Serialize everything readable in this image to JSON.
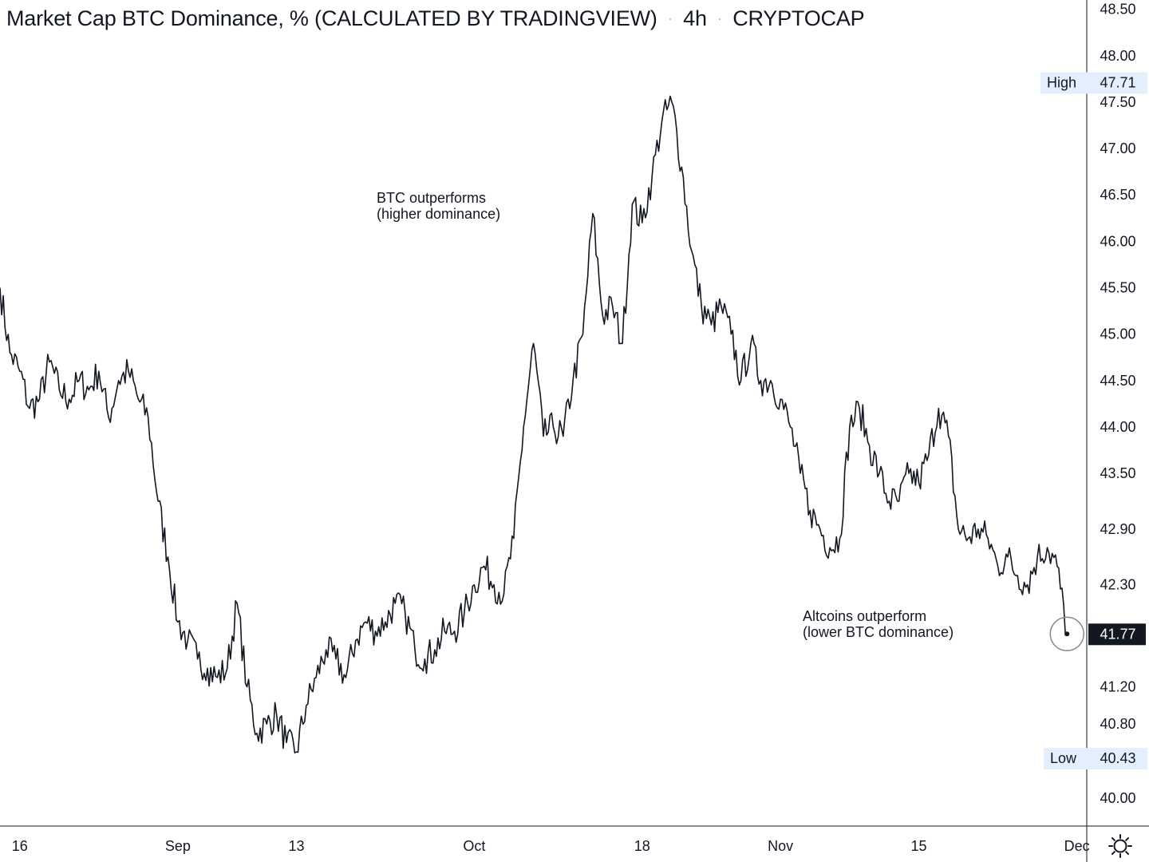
{
  "header": {
    "title": "Market Cap BTC Dominance, % (CALCULATED BY TRADINGVIEW)",
    "interval": "4h",
    "source": "CRYPTOCAP",
    "separator": "·"
  },
  "chart_data": {
    "type": "line",
    "title": "Market Cap BTC Dominance, % (CALCULATED BY TRADINGVIEW)",
    "xlabel": "",
    "ylabel": "",
    "x_tick_labels": [
      "16",
      "Sep",
      "13",
      "Oct",
      "18",
      "Nov",
      "15",
      "Dec"
    ],
    "y_tick_labels": [
      "48.50",
      "48.00",
      "47.50",
      "47.00",
      "46.50",
      "46.00",
      "45.50",
      "45.00",
      "44.50",
      "44.00",
      "43.50",
      "42.90",
      "42.30",
      "41.20",
      "40.80",
      "40.00"
    ],
    "ylim": [
      39.7,
      48.6
    ],
    "xlim": [
      "2021-08-14",
      "2021-12-02"
    ],
    "grid": false,
    "legend": "none",
    "series": [
      {
        "points": [
          [
            "2021-08-14",
            45.5
          ],
          [
            "2021-08-15",
            44.8
          ],
          [
            "2021-08-16",
            44.6
          ],
          [
            "2021-08-17",
            44.2
          ],
          [
            "2021-08-18",
            44.3
          ],
          [
            "2021-08-19",
            44.7
          ],
          [
            "2021-08-20",
            44.4
          ],
          [
            "2021-08-21",
            44.3
          ],
          [
            "2021-08-22",
            44.5
          ],
          [
            "2021-08-23",
            44.4
          ],
          [
            "2021-08-24",
            44.6
          ],
          [
            "2021-08-25",
            44.1
          ],
          [
            "2021-08-26",
            44.5
          ],
          [
            "2021-08-27",
            44.6
          ],
          [
            "2021-08-28",
            44.3
          ],
          [
            "2021-08-29",
            44.1
          ],
          [
            "2021-08-30",
            43.2
          ],
          [
            "2021-08-31",
            42.6
          ],
          [
            "2021-09-01",
            41.9
          ],
          [
            "2021-09-02",
            41.7
          ],
          [
            "2021-09-03",
            41.5
          ],
          [
            "2021-09-04",
            41.4
          ],
          [
            "2021-09-05",
            41.3
          ],
          [
            "2021-09-06",
            41.4
          ],
          [
            "2021-09-07",
            42.1
          ],
          [
            "2021-09-08",
            41.2
          ],
          [
            "2021-09-09",
            40.7
          ],
          [
            "2021-09-10",
            40.8
          ],
          [
            "2021-09-11",
            40.9
          ],
          [
            "2021-09-12",
            40.6
          ],
          [
            "2021-09-13",
            40.5
          ],
          [
            "2021-09-14",
            41.0
          ],
          [
            "2021-09-15",
            41.3
          ],
          [
            "2021-09-16",
            41.6
          ],
          [
            "2021-09-17",
            41.5
          ],
          [
            "2021-09-18",
            41.3
          ],
          [
            "2021-09-19",
            41.7
          ],
          [
            "2021-09-20",
            41.9
          ],
          [
            "2021-09-21",
            41.8
          ],
          [
            "2021-09-22",
            41.9
          ],
          [
            "2021-09-23",
            42.1
          ],
          [
            "2021-09-24",
            42.0
          ],
          [
            "2021-09-25",
            41.6
          ],
          [
            "2021-09-26",
            41.5
          ],
          [
            "2021-09-27",
            41.6
          ],
          [
            "2021-09-28",
            41.8
          ],
          [
            "2021-09-29",
            41.8
          ],
          [
            "2021-09-30",
            42.0
          ],
          [
            "2021-10-01",
            42.3
          ],
          [
            "2021-10-02",
            42.5
          ],
          [
            "2021-10-03",
            42.3
          ],
          [
            "2021-10-04",
            42.2
          ],
          [
            "2021-10-05",
            42.8
          ],
          [
            "2021-10-06",
            44.0
          ],
          [
            "2021-10-07",
            44.9
          ],
          [
            "2021-10-08",
            43.9
          ],
          [
            "2021-10-09",
            44.0
          ],
          [
            "2021-10-10",
            43.9
          ],
          [
            "2021-10-11",
            44.5
          ],
          [
            "2021-10-12",
            45.0
          ],
          [
            "2021-10-13",
            46.3
          ],
          [
            "2021-10-14",
            45.2
          ],
          [
            "2021-10-15",
            45.3
          ],
          [
            "2021-10-16",
            44.9
          ],
          [
            "2021-10-17",
            46.4
          ],
          [
            "2021-10-18",
            46.2
          ],
          [
            "2021-10-19",
            46.7
          ],
          [
            "2021-10-20",
            47.3
          ],
          [
            "2021-10-21",
            47.5
          ],
          [
            "2021-10-22",
            46.8
          ],
          [
            "2021-10-23",
            45.9
          ],
          [
            "2021-10-24",
            45.3
          ],
          [
            "2021-10-25",
            45.1
          ],
          [
            "2021-10-26",
            45.3
          ],
          [
            "2021-10-27",
            45.0
          ],
          [
            "2021-10-28",
            44.5
          ],
          [
            "2021-10-29",
            44.9
          ],
          [
            "2021-10-30",
            44.5
          ],
          [
            "2021-10-31",
            44.5
          ],
          [
            "2021-11-01",
            44.3
          ],
          [
            "2021-11-02",
            44.0
          ],
          [
            "2021-11-03",
            43.5
          ],
          [
            "2021-11-04",
            43.1
          ],
          [
            "2021-11-05",
            42.9
          ],
          [
            "2021-11-06",
            42.7
          ],
          [
            "2021-11-07",
            42.8
          ],
          [
            "2021-11-08",
            44.0
          ],
          [
            "2021-11-09",
            44.2
          ],
          [
            "2021-11-10",
            43.8
          ],
          [
            "2021-11-11",
            43.5
          ],
          [
            "2021-11-12",
            43.2
          ],
          [
            "2021-11-13",
            43.2
          ],
          [
            "2021-11-14",
            43.5
          ],
          [
            "2021-11-15",
            43.4
          ],
          [
            "2021-11-16",
            43.7
          ],
          [
            "2021-11-17",
            44.2
          ],
          [
            "2021-11-18",
            43.9
          ],
          [
            "2021-11-19",
            42.9
          ],
          [
            "2021-11-20",
            42.8
          ],
          [
            "2021-11-21",
            42.9
          ],
          [
            "2021-11-22",
            42.8
          ],
          [
            "2021-11-23",
            42.5
          ],
          [
            "2021-11-24",
            42.6
          ],
          [
            "2021-11-25",
            42.4
          ],
          [
            "2021-11-26",
            42.3
          ],
          [
            "2021-11-27",
            42.6
          ],
          [
            "2021-11-28",
            42.7
          ],
          [
            "2021-11-29",
            42.5
          ],
          [
            "2021-11-30",
            41.77
          ]
        ]
      }
    ],
    "high": {
      "label": "High",
      "value": "47.71"
    },
    "low": {
      "label": "Low",
      "value": "40.43"
    },
    "last": {
      "value": "41.77"
    },
    "annotations": [
      {
        "line1": "BTC outperforms",
        "line2": "(higher dominance)"
      },
      {
        "line1": "Altcoins outperform",
        "line2": "(lower BTC dominance)"
      }
    ],
    "colors": {
      "line": "#131722",
      "pill_bg": "#e3effd",
      "last_bg": "#131722",
      "axis": "#131722"
    }
  },
  "icons": {
    "settings": "settings-sun-icon"
  }
}
